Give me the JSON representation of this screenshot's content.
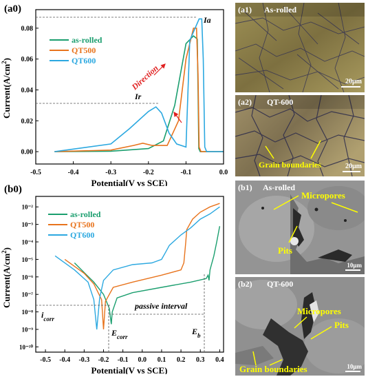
{
  "panels": {
    "a0": {
      "label": "(a0)"
    },
    "b0": {
      "label": "(b0)"
    },
    "a1": {
      "label": "(a1)",
      "caption": "As-rolled",
      "scale": "20μm"
    },
    "a2": {
      "label": "(a2)",
      "caption": "QT-600",
      "scale": "20μm",
      "annotation": "Grain boundaries"
    },
    "b1": {
      "label": "(b1)",
      "caption": "As-rolled",
      "scale": "10μm",
      "annotations": [
        "Micropores",
        "Pits"
      ]
    },
    "b2": {
      "label": "(b2)",
      "caption": "QT-600",
      "scale": "10μm",
      "annotations": [
        "Micropores",
        "Pits",
        "Grain boundaries"
      ]
    }
  },
  "colors": {
    "as_rolled": "#1a9e6e",
    "qt500": "#e8731c",
    "qt600": "#2ba8e0",
    "annotation": "#ffff00",
    "direction": "#e02020"
  },
  "chart_data": [
    {
      "type": "line",
      "panel": "a0",
      "xlabel": "Potential(V vs SCE)",
      "ylabel": "Current(A/cm²)",
      "xlim": [
        -0.5,
        0.0
      ],
      "ylim": [
        -0.008,
        0.092
      ],
      "xticks": [
        "-0.5",
        "-0.4",
        "-0.3",
        "-0.2",
        "-0.1",
        "0.0"
      ],
      "yticks": [
        "0.00",
        "0.02",
        "0.04",
        "0.06",
        "0.08"
      ],
      "legend_position": "upper-left",
      "annotations": {
        "ia": "Ia",
        "ir": "Ir",
        "direction": "Direction"
      },
      "series": [
        {
          "name": "as-rolled",
          "color": "#1a9e6e",
          "points": [
            [
              -0.45,
              0
            ],
            [
              -0.3,
              0.0003
            ],
            [
              -0.2,
              0.002
            ],
            [
              -0.16,
              0.007
            ],
            [
              -0.13,
              0.03
            ],
            [
              -0.1,
              0.07
            ],
            [
              -0.08,
              0.075
            ],
            [
              -0.07,
              0.073
            ],
            [
              -0.068,
              0.04
            ],
            [
              -0.066,
              0.002
            ],
            [
              -0.062,
              0
            ],
            [
              -0.0,
              0
            ]
          ]
        },
        {
          "name": "QT500",
          "color": "#e8731c",
          "points": [
            [
              -0.45,
              0
            ],
            [
              -0.3,
              0.001
            ],
            [
              -0.24,
              0.004
            ],
            [
              -0.215,
              0.0055
            ],
            [
              -0.19,
              0.004
            ],
            [
              -0.15,
              0.004
            ],
            [
              -0.12,
              0.02
            ],
            [
              -0.1,
              0.06
            ],
            [
              -0.08,
              0.08
            ],
            [
              -0.072,
              0.08
            ],
            [
              -0.068,
              0.05
            ],
            [
              -0.065,
              0.003
            ],
            [
              -0.06,
              0
            ],
            [
              -0.0,
              0
            ]
          ]
        },
        {
          "name": "QT600",
          "color": "#2ba8e0",
          "points": [
            [
              -0.45,
              0
            ],
            [
              -0.3,
              0.005
            ],
            [
              -0.25,
              0.015
            ],
            [
              -0.2,
              0.026
            ],
            [
              -0.18,
              0.029
            ],
            [
              -0.165,
              0.025
            ],
            [
              -0.145,
              0.012
            ],
            [
              -0.125,
              0.005
            ],
            [
              -0.1,
              0.003
            ],
            [
              -0.09,
              0.072
            ],
            [
              -0.065,
              0.086
            ],
            [
              -0.058,
              0.086
            ],
            [
              -0.054,
              0.06
            ],
            [
              -0.05,
              0.003
            ],
            [
              -0.045,
              0
            ],
            [
              -0.0,
              0
            ]
          ]
        }
      ]
    },
    {
      "type": "line",
      "panel": "b0",
      "xlabel": "Potential(V vs SCE)",
      "ylabel": "Current(A/cm²)",
      "y_scale": "log",
      "xlim": [
        -0.55,
        0.42
      ],
      "ylim_log10": [
        -10.3,
        -1.4
      ],
      "xticks": [
        "-0.5",
        "-0.4",
        "-0.3",
        "-0.2",
        "-0.1",
        "0.0",
        "0.1",
        "0.2",
        "0.3",
        "0.4"
      ],
      "yticks": [
        "10⁻²",
        "10⁻³",
        "10⁻⁴",
        "10⁻⁵",
        "10⁻⁶",
        "10⁻⁷",
        "10⁻⁸",
        "10⁻⁹",
        "10⁻¹⁰"
      ],
      "legend_position": "upper-left",
      "annotations": {
        "icorr": "i",
        "icorr_sub": "corr",
        "ecorr": "E",
        "ecorr_sub": "corr",
        "eb": "E",
        "eb_sub": "b",
        "passive": "passive interval"
      },
      "series": [
        {
          "name": "as-rolled",
          "color": "#1a9e6e",
          "points": [
            [
              -0.35,
              -5.2
            ],
            [
              -0.25,
              -6.3
            ],
            [
              -0.2,
              -7.0
            ],
            [
              -0.17,
              -7.8
            ],
            [
              -0.16,
              -8.7
            ],
            [
              -0.155,
              -8.0
            ],
            [
              -0.13,
              -7.2
            ],
            [
              -0.05,
              -6.9
            ],
            [
              0.1,
              -6.6
            ],
            [
              0.25,
              -6.3
            ],
            [
              0.33,
              -6.1
            ],
            [
              0.34,
              -5.9
            ],
            [
              0.345,
              -6.2
            ],
            [
              0.35,
              -5.6
            ],
            [
              0.37,
              -4.8
            ],
            [
              0.385,
              -4.0
            ],
            [
              0.4,
              -3.1
            ]
          ]
        },
        {
          "name": "QT500",
          "color": "#e8731c",
          "points": [
            [
              -0.4,
              -5.0
            ],
            [
              -0.3,
              -5.8
            ],
            [
              -0.25,
              -6.4
            ],
            [
              -0.21,
              -7.3
            ],
            [
              -0.2,
              -9.0
            ],
            [
              -0.19,
              -7.4
            ],
            [
              -0.15,
              -6.6
            ],
            [
              -0.05,
              -6.3
            ],
            [
              0.1,
              -5.9
            ],
            [
              0.2,
              -5.6
            ],
            [
              0.215,
              -5.2
            ],
            [
              0.225,
              -4.0
            ],
            [
              0.23,
              -3.3
            ],
            [
              0.26,
              -2.7
            ],
            [
              0.3,
              -2.3
            ],
            [
              0.35,
              -2.0
            ],
            [
              0.4,
              -1.8
            ]
          ]
        },
        {
          "name": "QT600",
          "color": "#2ba8e0",
          "points": [
            [
              -0.45,
              -4.8
            ],
            [
              -0.35,
              -5.6
            ],
            [
              -0.28,
              -6.3
            ],
            [
              -0.25,
              -7.3
            ],
            [
              -0.235,
              -9.0
            ],
            [
              -0.22,
              -7.2
            ],
            [
              -0.2,
              -6.2
            ],
            [
              -0.15,
              -5.6
            ],
            [
              -0.05,
              -5.3
            ],
            [
              0.05,
              -5.2
            ],
            [
              0.1,
              -5.0
            ],
            [
              0.12,
              -4.6
            ],
            [
              0.14,
              -4.2
            ],
            [
              0.2,
              -3.6
            ],
            [
              0.25,
              -3.2
            ],
            [
              0.3,
              -2.7
            ],
            [
              0.35,
              -2.4
            ],
            [
              0.4,
              -2.0
            ]
          ]
        }
      ]
    }
  ]
}
